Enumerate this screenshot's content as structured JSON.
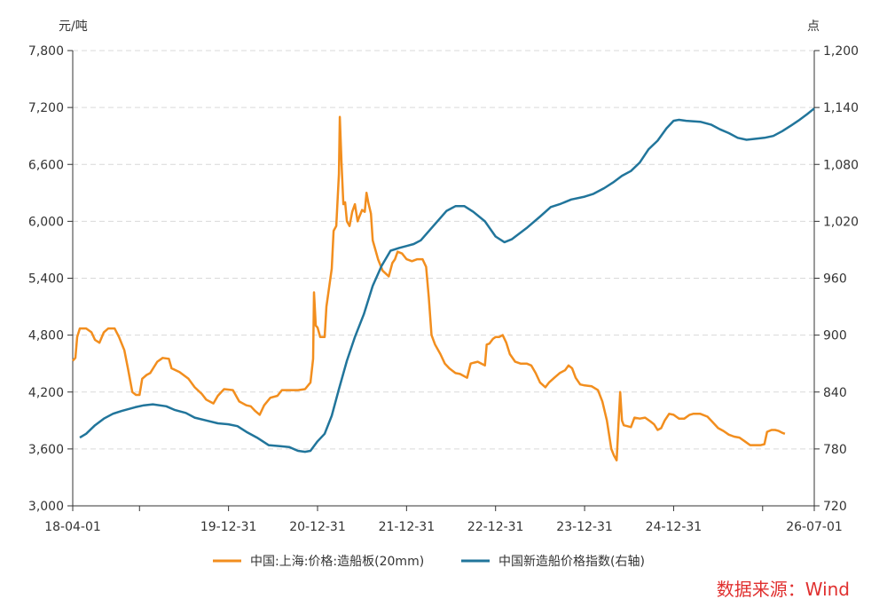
{
  "chart_data": {
    "type": "line",
    "left_unit": "元/吨",
    "right_unit": "点",
    "left_axis": {
      "min": 3000,
      "max": 7800,
      "ticks": [
        "3,000",
        "3,600",
        "4,200",
        "4,800",
        "5,400",
        "6,000",
        "6,600",
        "7,200",
        "7,800"
      ]
    },
    "right_axis": {
      "min": 720,
      "max": 1200,
      "ticks": [
        "720",
        "780",
        "840",
        "900",
        "960",
        "1,020",
        "1,080",
        "1,140",
        "1,200"
      ]
    },
    "x_range": [
      2018.25,
      2026.58
    ],
    "x_ticks": [
      {
        "x": 2018.25,
        "label": "18-04-01"
      },
      {
        "x": 2019.0,
        "label": ""
      },
      {
        "x": 2020.0,
        "label": "19-12-31"
      },
      {
        "x": 2021.0,
        "label": "20-12-31"
      },
      {
        "x": 2022.0,
        "label": "21-12-31"
      },
      {
        "x": 2023.0,
        "label": "22-12-31"
      },
      {
        "x": 2024.0,
        "label": "23-12-31"
      },
      {
        "x": 2025.0,
        "label": "24-12-31"
      },
      {
        "x": 2026.0,
        "label": ""
      },
      {
        "x": 2026.58,
        "label": "26-07-01"
      }
    ],
    "grid": "horizontal-dashed",
    "legend_position": "bottom",
    "series": [
      {
        "name": "中国:上海:价格:造船板(20mm)",
        "axis": "left",
        "color": "#f28e1e",
        "points": [
          [
            2018.25,
            4530
          ],
          [
            2018.28,
            4560
          ],
          [
            2018.3,
            4780
          ],
          [
            2018.33,
            4870
          ],
          [
            2018.4,
            4870
          ],
          [
            2018.46,
            4830
          ],
          [
            2018.5,
            4750
          ],
          [
            2018.55,
            4720
          ],
          [
            2018.6,
            4830
          ],
          [
            2018.65,
            4870
          ],
          [
            2018.72,
            4870
          ],
          [
            2018.77,
            4780
          ],
          [
            2018.83,
            4640
          ],
          [
            2018.87,
            4450
          ],
          [
            2018.92,
            4200
          ],
          [
            2018.96,
            4170
          ],
          [
            2019.0,
            4170
          ],
          [
            2019.03,
            4340
          ],
          [
            2019.08,
            4380
          ],
          [
            2019.12,
            4400
          ],
          [
            2019.2,
            4520
          ],
          [
            2019.26,
            4560
          ],
          [
            2019.33,
            4550
          ],
          [
            2019.36,
            4450
          ],
          [
            2019.45,
            4410
          ],
          [
            2019.55,
            4340
          ],
          [
            2019.62,
            4250
          ],
          [
            2019.7,
            4180
          ],
          [
            2019.75,
            4120
          ],
          [
            2019.83,
            4080
          ],
          [
            2019.88,
            4160
          ],
          [
            2019.95,
            4230
          ],
          [
            2020.05,
            4220
          ],
          [
            2020.12,
            4100
          ],
          [
            2020.2,
            4060
          ],
          [
            2020.25,
            4050
          ],
          [
            2020.3,
            4000
          ],
          [
            2020.35,
            3960
          ],
          [
            2020.4,
            4060
          ],
          [
            2020.47,
            4140
          ],
          [
            2020.55,
            4160
          ],
          [
            2020.6,
            4220
          ],
          [
            2020.7,
            4220
          ],
          [
            2020.78,
            4220
          ],
          [
            2020.86,
            4230
          ],
          [
            2020.92,
            4300
          ],
          [
            2020.95,
            4550
          ],
          [
            2020.96,
            5250
          ],
          [
            2020.98,
            4900
          ],
          [
            2021.0,
            4880
          ],
          [
            2021.03,
            4780
          ],
          [
            2021.08,
            4780
          ],
          [
            2021.1,
            5100
          ],
          [
            2021.13,
            5300
          ],
          [
            2021.16,
            5500
          ],
          [
            2021.18,
            5900
          ],
          [
            2021.21,
            5950
          ],
          [
            2021.24,
            6500
          ],
          [
            2021.25,
            7100
          ],
          [
            2021.27,
            6600
          ],
          [
            2021.29,
            6180
          ],
          [
            2021.31,
            6200
          ],
          [
            2021.33,
            6000
          ],
          [
            2021.36,
            5950
          ],
          [
            2021.39,
            6100
          ],
          [
            2021.42,
            6180
          ],
          [
            2021.45,
            6000
          ],
          [
            2021.47,
            6050
          ],
          [
            2021.5,
            6120
          ],
          [
            2021.53,
            6100
          ],
          [
            2021.55,
            6300
          ],
          [
            2021.57,
            6200
          ],
          [
            2021.6,
            6080
          ],
          [
            2021.62,
            5800
          ],
          [
            2021.65,
            5700
          ],
          [
            2021.68,
            5600
          ],
          [
            2021.73,
            5480
          ],
          [
            2021.8,
            5420
          ],
          [
            2021.84,
            5560
          ],
          [
            2021.87,
            5600
          ],
          [
            2021.9,
            5680
          ],
          [
            2021.95,
            5660
          ],
          [
            2022.0,
            5600
          ],
          [
            2022.06,
            5580
          ],
          [
            2022.12,
            5600
          ],
          [
            2022.18,
            5600
          ],
          [
            2022.22,
            5520
          ],
          [
            2022.25,
            5200
          ],
          [
            2022.28,
            4800
          ],
          [
            2022.32,
            4700
          ],
          [
            2022.38,
            4600
          ],
          [
            2022.43,
            4500
          ],
          [
            2022.48,
            4450
          ],
          [
            2022.55,
            4400
          ],
          [
            2022.6,
            4390
          ],
          [
            2022.68,
            4350
          ],
          [
            2022.72,
            4500
          ],
          [
            2022.76,
            4510
          ],
          [
            2022.8,
            4520
          ],
          [
            2022.84,
            4500
          ],
          [
            2022.88,
            4480
          ],
          [
            2022.9,
            4700
          ],
          [
            2022.93,
            4710
          ],
          [
            2022.97,
            4760
          ],
          [
            2023.0,
            4780
          ],
          [
            2023.04,
            4780
          ],
          [
            2023.08,
            4800
          ],
          [
            2023.12,
            4720
          ],
          [
            2023.16,
            4600
          ],
          [
            2023.22,
            4520
          ],
          [
            2023.28,
            4500
          ],
          [
            2023.35,
            4500
          ],
          [
            2023.4,
            4480
          ],
          [
            2023.45,
            4400
          ],
          [
            2023.5,
            4300
          ],
          [
            2023.56,
            4250
          ],
          [
            2023.6,
            4300
          ],
          [
            2023.66,
            4350
          ],
          [
            2023.72,
            4400
          ],
          [
            2023.78,
            4430
          ],
          [
            2023.82,
            4480
          ],
          [
            2023.86,
            4450
          ],
          [
            2023.9,
            4350
          ],
          [
            2023.95,
            4280
          ],
          [
            2024.0,
            4270
          ],
          [
            2024.08,
            4260
          ],
          [
            2024.15,
            4220
          ],
          [
            2024.2,
            4100
          ],
          [
            2024.25,
            3900
          ],
          [
            2024.3,
            3600
          ],
          [
            2024.33,
            3530
          ],
          [
            2024.36,
            3480
          ],
          [
            2024.38,
            3850
          ],
          [
            2024.4,
            4200
          ],
          [
            2024.42,
            3900
          ],
          [
            2024.44,
            3850
          ],
          [
            2024.48,
            3840
          ],
          [
            2024.52,
            3830
          ],
          [
            2024.56,
            3930
          ],
          [
            2024.62,
            3920
          ],
          [
            2024.68,
            3930
          ],
          [
            2024.74,
            3890
          ],
          [
            2024.78,
            3860
          ],
          [
            2024.82,
            3800
          ],
          [
            2024.86,
            3820
          ],
          [
            2024.9,
            3900
          ],
          [
            2024.95,
            3970
          ],
          [
            2025.0,
            3960
          ],
          [
            2025.06,
            3920
          ],
          [
            2025.12,
            3920
          ],
          [
            2025.18,
            3960
          ],
          [
            2025.22,
            3970
          ],
          [
            2025.3,
            3970
          ],
          [
            2025.38,
            3940
          ],
          [
            2025.44,
            3880
          ],
          [
            2025.5,
            3820
          ],
          [
            2025.56,
            3790
          ],
          [
            2025.62,
            3750
          ],
          [
            2025.68,
            3730
          ],
          [
            2025.74,
            3720
          ],
          [
            2025.8,
            3680
          ],
          [
            2025.86,
            3640
          ],
          [
            2025.92,
            3640
          ],
          [
            2025.98,
            3640
          ],
          [
            2026.02,
            3650
          ],
          [
            2026.05,
            3780
          ],
          [
            2026.1,
            3800
          ],
          [
            2026.14,
            3800
          ],
          [
            2026.18,
            3790
          ],
          [
            2026.22,
            3770
          ],
          [
            2026.25,
            3760
          ]
        ]
      },
      {
        "name": "中国新造船价格指数(右轴)",
        "axis": "right",
        "color": "#21759b",
        "points": [
          [
            2018.33,
            792
          ],
          [
            2018.4,
            796
          ],
          [
            2018.5,
            805
          ],
          [
            2018.6,
            812
          ],
          [
            2018.7,
            817
          ],
          [
            2018.8,
            820
          ],
          [
            2018.95,
            824
          ],
          [
            2019.05,
            826
          ],
          [
            2019.15,
            827
          ],
          [
            2019.3,
            825
          ],
          [
            2019.4,
            821
          ],
          [
            2019.52,
            818
          ],
          [
            2019.62,
            813
          ],
          [
            2019.75,
            810
          ],
          [
            2019.88,
            807
          ],
          [
            2020.0,
            806
          ],
          [
            2020.1,
            804
          ],
          [
            2020.2,
            798
          ],
          [
            2020.32,
            792
          ],
          [
            2020.45,
            784
          ],
          [
            2020.58,
            783
          ],
          [
            2020.68,
            782
          ],
          [
            2020.78,
            778
          ],
          [
            2020.86,
            777
          ],
          [
            2020.92,
            778
          ],
          [
            2021.0,
            788
          ],
          [
            2021.08,
            796
          ],
          [
            2021.16,
            815
          ],
          [
            2021.24,
            843
          ],
          [
            2021.33,
            873
          ],
          [
            2021.42,
            898
          ],
          [
            2021.52,
            922
          ],
          [
            2021.62,
            952
          ],
          [
            2021.72,
            973
          ],
          [
            2021.82,
            989
          ],
          [
            2021.92,
            992
          ],
          [
            2022.0,
            994
          ],
          [
            2022.08,
            996
          ],
          [
            2022.16,
            1000
          ],
          [
            2022.3,
            1015
          ],
          [
            2022.45,
            1031
          ],
          [
            2022.55,
            1036
          ],
          [
            2022.65,
            1036
          ],
          [
            2022.75,
            1030
          ],
          [
            2022.88,
            1020
          ],
          [
            2023.0,
            1004
          ],
          [
            2023.1,
            998
          ],
          [
            2023.18,
            1001
          ],
          [
            2023.35,
            1013
          ],
          [
            2023.5,
            1025
          ],
          [
            2023.62,
            1035
          ],
          [
            2023.72,
            1038
          ],
          [
            2023.85,
            1043
          ],
          [
            2024.0,
            1046
          ],
          [
            2024.1,
            1049
          ],
          [
            2024.22,
            1055
          ],
          [
            2024.32,
            1061
          ],
          [
            2024.42,
            1068
          ],
          [
            2024.52,
            1073
          ],
          [
            2024.62,
            1082
          ],
          [
            2024.72,
            1096
          ],
          [
            2024.82,
            1105
          ],
          [
            2024.92,
            1118
          ],
          [
            2025.0,
            1126
          ],
          [
            2025.06,
            1127
          ],
          [
            2025.14,
            1126
          ],
          [
            2025.3,
            1125
          ],
          [
            2025.42,
            1122
          ],
          [
            2025.52,
            1117
          ],
          [
            2025.62,
            1113
          ],
          [
            2025.72,
            1108
          ],
          [
            2025.82,
            1106
          ],
          [
            2025.92,
            1107
          ],
          [
            2026.02,
            1108
          ],
          [
            2026.12,
            1110
          ],
          [
            2026.22,
            1115
          ],
          [
            2026.32,
            1121
          ],
          [
            2026.4,
            1126
          ],
          [
            2026.5,
            1133
          ],
          [
            2026.58,
            1139
          ]
        ]
      }
    ]
  },
  "source": "数据来源：Wind"
}
